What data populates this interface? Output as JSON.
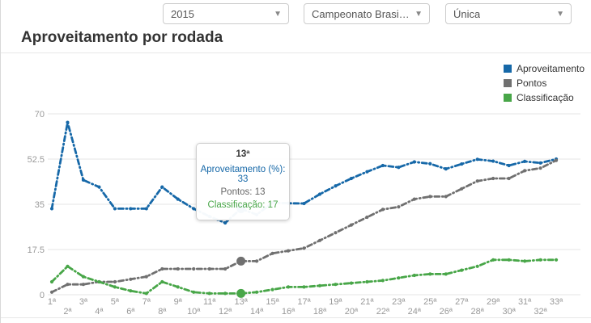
{
  "filters": {
    "season": "2015",
    "competition": "Campeonato Brasileiro Sé...",
    "phase": "Única"
  },
  "title": "Aproveitamento por rodada",
  "legend": [
    {
      "label": "Aproveitamento",
      "color": "#1668a8"
    },
    {
      "label": "Pontos",
      "color": "#707070"
    },
    {
      "label": "Classificação",
      "color": "#48a648"
    }
  ],
  "tooltip": {
    "round": "13ª",
    "lines": [
      {
        "text": "Aproveitamento (%): 33",
        "color": "#1668a8"
      },
      {
        "text": "Pontos: 13",
        "color": "#666666"
      },
      {
        "text": "Classificação: 17",
        "color": "#48a648"
      }
    ]
  },
  "chart_data": {
    "type": "line",
    "title": "Aproveitamento por rodada",
    "categories": [
      "1ª",
      "2ª",
      "3ª",
      "4ª",
      "5ª",
      "6ª",
      "7ª",
      "8ª",
      "9ª",
      "10ª",
      "11ª",
      "12ª",
      "13ª",
      "14ª",
      "15ª",
      "16ª",
      "17ª",
      "18ª",
      "19ª",
      "20ª",
      "21ª",
      "22ª",
      "23ª",
      "24ª",
      "25ª",
      "26ª",
      "27ª",
      "28ª",
      "29ª",
      "30ª",
      "31ª",
      "32ª",
      "33ª"
    ],
    "series": [
      {
        "name": "Aproveitamento",
        "color": "#1668a8",
        "values": [
          33.3,
          66.7,
          44.4,
          41.7,
          33.3,
          33.3,
          33.3,
          41.7,
          37.0,
          33.3,
          30.3,
          27.8,
          33.3,
          31.0,
          35.6,
          35.4,
          35.3,
          38.9,
          42.1,
          45.0,
          47.6,
          50.0,
          49.3,
          51.4,
          50.7,
          48.7,
          50.6,
          52.4,
          51.7,
          50.0,
          51.6,
          51.0,
          52.5
        ]
      },
      {
        "name": "Pontos",
        "color": "#707070",
        "values": [
          1,
          4,
          4,
          5,
          5,
          6,
          7,
          10,
          10,
          10,
          10,
          10,
          13,
          13,
          16,
          17,
          18,
          21,
          24,
          27,
          30,
          33,
          34,
          37,
          38,
          38,
          41,
          44,
          45,
          45,
          48,
          49,
          52
        ]
      },
      {
        "name": "Classificação",
        "color": "#48a648",
        "values": [
          5,
          11,
          7,
          5,
          3,
          1.5,
          0.5,
          5,
          3,
          1,
          0.5,
          0.5,
          0.5,
          1,
          2,
          3,
          3,
          3.5,
          4,
          4.5,
          5,
          5.5,
          6.5,
          7.5,
          8,
          8,
          9.5,
          11,
          13.5,
          13.5,
          13,
          13.5,
          13.5
        ]
      }
    ],
    "highlight_index": 12,
    "tooltip_point": {
      "category": "13ª",
      "aproveitamento_pct": 33,
      "pontos": 13,
      "classificacao": 17
    },
    "yaxis": {
      "min": 0,
      "max": 70,
      "ticks": [
        0,
        17.5,
        35,
        52.5,
        70
      ]
    },
    "xlabel": "",
    "ylabel": "",
    "grid": true,
    "legend_position": "top-right"
  }
}
